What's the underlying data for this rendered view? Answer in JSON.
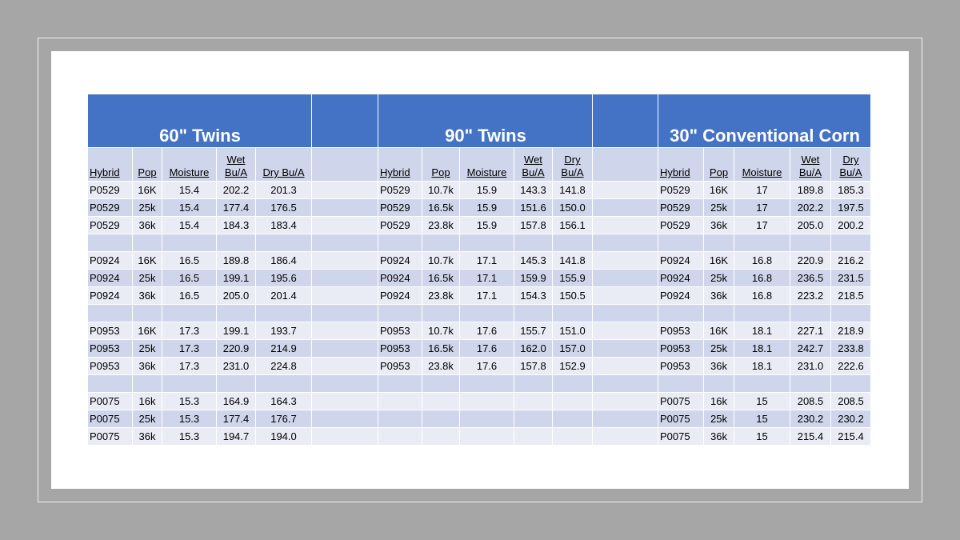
{
  "table": {
    "groups": [
      {
        "title": "60\" Twins",
        "columns": [
          "Hybrid",
          "Pop",
          "Moisture",
          "Wet Bu/A",
          "Dry Bu/A"
        ],
        "rows": [
          [
            "P0529",
            "16K",
            "15.4",
            "202.2",
            "201.3"
          ],
          [
            "P0529",
            "25k",
            "15.4",
            "177.4",
            "176.5"
          ],
          [
            "P0529",
            "36k",
            "15.4",
            "184.3",
            "183.4"
          ],
          null,
          [
            "P0924",
            "16K",
            "16.5",
            "189.8",
            "186.4"
          ],
          [
            "P0924",
            "25k",
            "16.5",
            "199.1",
            "195.6"
          ],
          [
            "P0924",
            "36k",
            "16.5",
            "205.0",
            "201.4"
          ],
          null,
          [
            "P0953",
            "16K",
            "17.3",
            "199.1",
            "193.7"
          ],
          [
            "P0953",
            "25k",
            "17.3",
            "220.9",
            "214.9"
          ],
          [
            "P0953",
            "36k",
            "17.3",
            "231.0",
            "224.8"
          ],
          null,
          [
            "P0075",
            "16k",
            "15.3",
            "164.9",
            "164.3"
          ],
          [
            "P0075",
            "25k",
            "15.3",
            "177.4",
            "176.7"
          ],
          [
            "P0075",
            "36k",
            "15.3",
            "194.7",
            "194.0"
          ]
        ]
      },
      {
        "title": "90\" Twins",
        "columns": [
          "Hybrid",
          "Pop",
          "Moisture",
          "Wet Bu/A",
          "Dry Bu/A"
        ],
        "rows": [
          [
            "P0529",
            "10.7k",
            "15.9",
            "143.3",
            "141.8"
          ],
          [
            "P0529",
            "16.5k",
            "15.9",
            "151.6",
            "150.0"
          ],
          [
            "P0529",
            "23.8k",
            "15.9",
            "157.8",
            "156.1"
          ],
          null,
          [
            "P0924",
            "10.7k",
            "17.1",
            "145.3",
            "141.8"
          ],
          [
            "P0924",
            "16.5k",
            "17.1",
            "159.9",
            "155.9"
          ],
          [
            "P0924",
            "23.8k",
            "17.1",
            "154.3",
            "150.5"
          ],
          null,
          [
            "P0953",
            "10.7k",
            "17.6",
            "155.7",
            "151.0"
          ],
          [
            "P0953",
            "16.5k",
            "17.6",
            "162.0",
            "157.0"
          ],
          [
            "P0953",
            "23.8k",
            "17.6",
            "157.8",
            "152.9"
          ],
          null,
          null,
          null,
          null
        ]
      },
      {
        "title": "30\" Conventional Corn",
        "columns": [
          "Hybrid",
          "Pop",
          "Moisture",
          "Wet Bu/A",
          "Dry Bu/A"
        ],
        "rows": [
          [
            "P0529",
            "16K",
            "17",
            "189.8",
            "185.3"
          ],
          [
            "P0529",
            "25k",
            "17",
            "202.2",
            "197.5"
          ],
          [
            "P0529",
            "36k",
            "17",
            "205.0",
            "200.2"
          ],
          null,
          [
            "P0924",
            "16K",
            "16.8",
            "220.9",
            "216.2"
          ],
          [
            "P0924",
            "25k",
            "16.8",
            "236.5",
            "231.5"
          ],
          [
            "P0924",
            "36k",
            "16.8",
            "223.2",
            "218.5"
          ],
          null,
          [
            "P0953",
            "16K",
            "18.1",
            "227.1",
            "218.9"
          ],
          [
            "P0953",
            "25k",
            "18.1",
            "242.7",
            "233.8"
          ],
          [
            "P0953",
            "36k",
            "18.1",
            "231.0",
            "222.6"
          ],
          null,
          [
            "P0075",
            "16k",
            "15",
            "208.5",
            "208.5"
          ],
          [
            "P0075",
            "25k",
            "15",
            "230.2",
            "230.2"
          ],
          [
            "P0075",
            "36k",
            "15",
            "215.4",
            "215.4"
          ]
        ]
      }
    ]
  }
}
